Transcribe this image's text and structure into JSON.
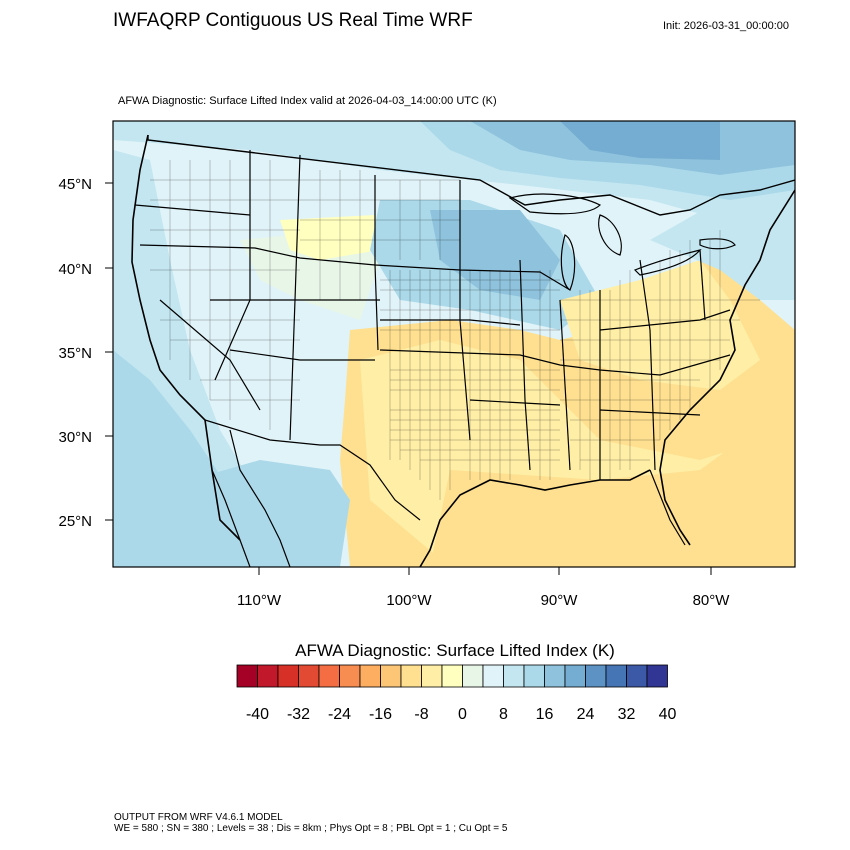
{
  "header": {
    "title": "IWFAQRP Contiguous US Real Time WRF",
    "init": "Init: 2026-03-31_00:00:00",
    "field_title": "AFWA Diagnostic: Surface Lifted Index valid at 2026-04-03_14:00:00 UTC   (K)"
  },
  "map": {
    "lat_labels": [
      "45°N",
      "40°N",
      "35°N",
      "30°N",
      "25°N"
    ],
    "lon_labels": [
      "110°W",
      "100°W",
      "90°W",
      "80°W"
    ]
  },
  "colorbar": {
    "title": "AFWA Diagnostic: Surface Lifted Index  (K)",
    "tick_labels": [
      "-40",
      "-32",
      "-24",
      "-16",
      "-8",
      "0",
      "8",
      "16",
      "24",
      "32",
      "40"
    ],
    "colors": [
      "#a50026",
      "#c2182b",
      "#d73027",
      "#e34a33",
      "#f46d43",
      "#f88d52",
      "#fdae61",
      "#fdc677",
      "#fee090",
      "#ffefa6",
      "#ffffbf",
      "#e8f6e8",
      "#e0f3f8",
      "#c3e6f0",
      "#abd9e9",
      "#8fc3dd",
      "#74add1",
      "#5d92c5",
      "#4575b4",
      "#3b59a6",
      "#313695"
    ]
  },
  "footer": {
    "line1": "OUTPUT FROM WRF V4.6.1 MODEL",
    "line2": "WE = 580 ; SN = 380 ; Levels = 38 ; Dis = 8km ; Phys Opt = 8 ; PBL Opt = 1 ; Cu Opt = 5"
  }
}
